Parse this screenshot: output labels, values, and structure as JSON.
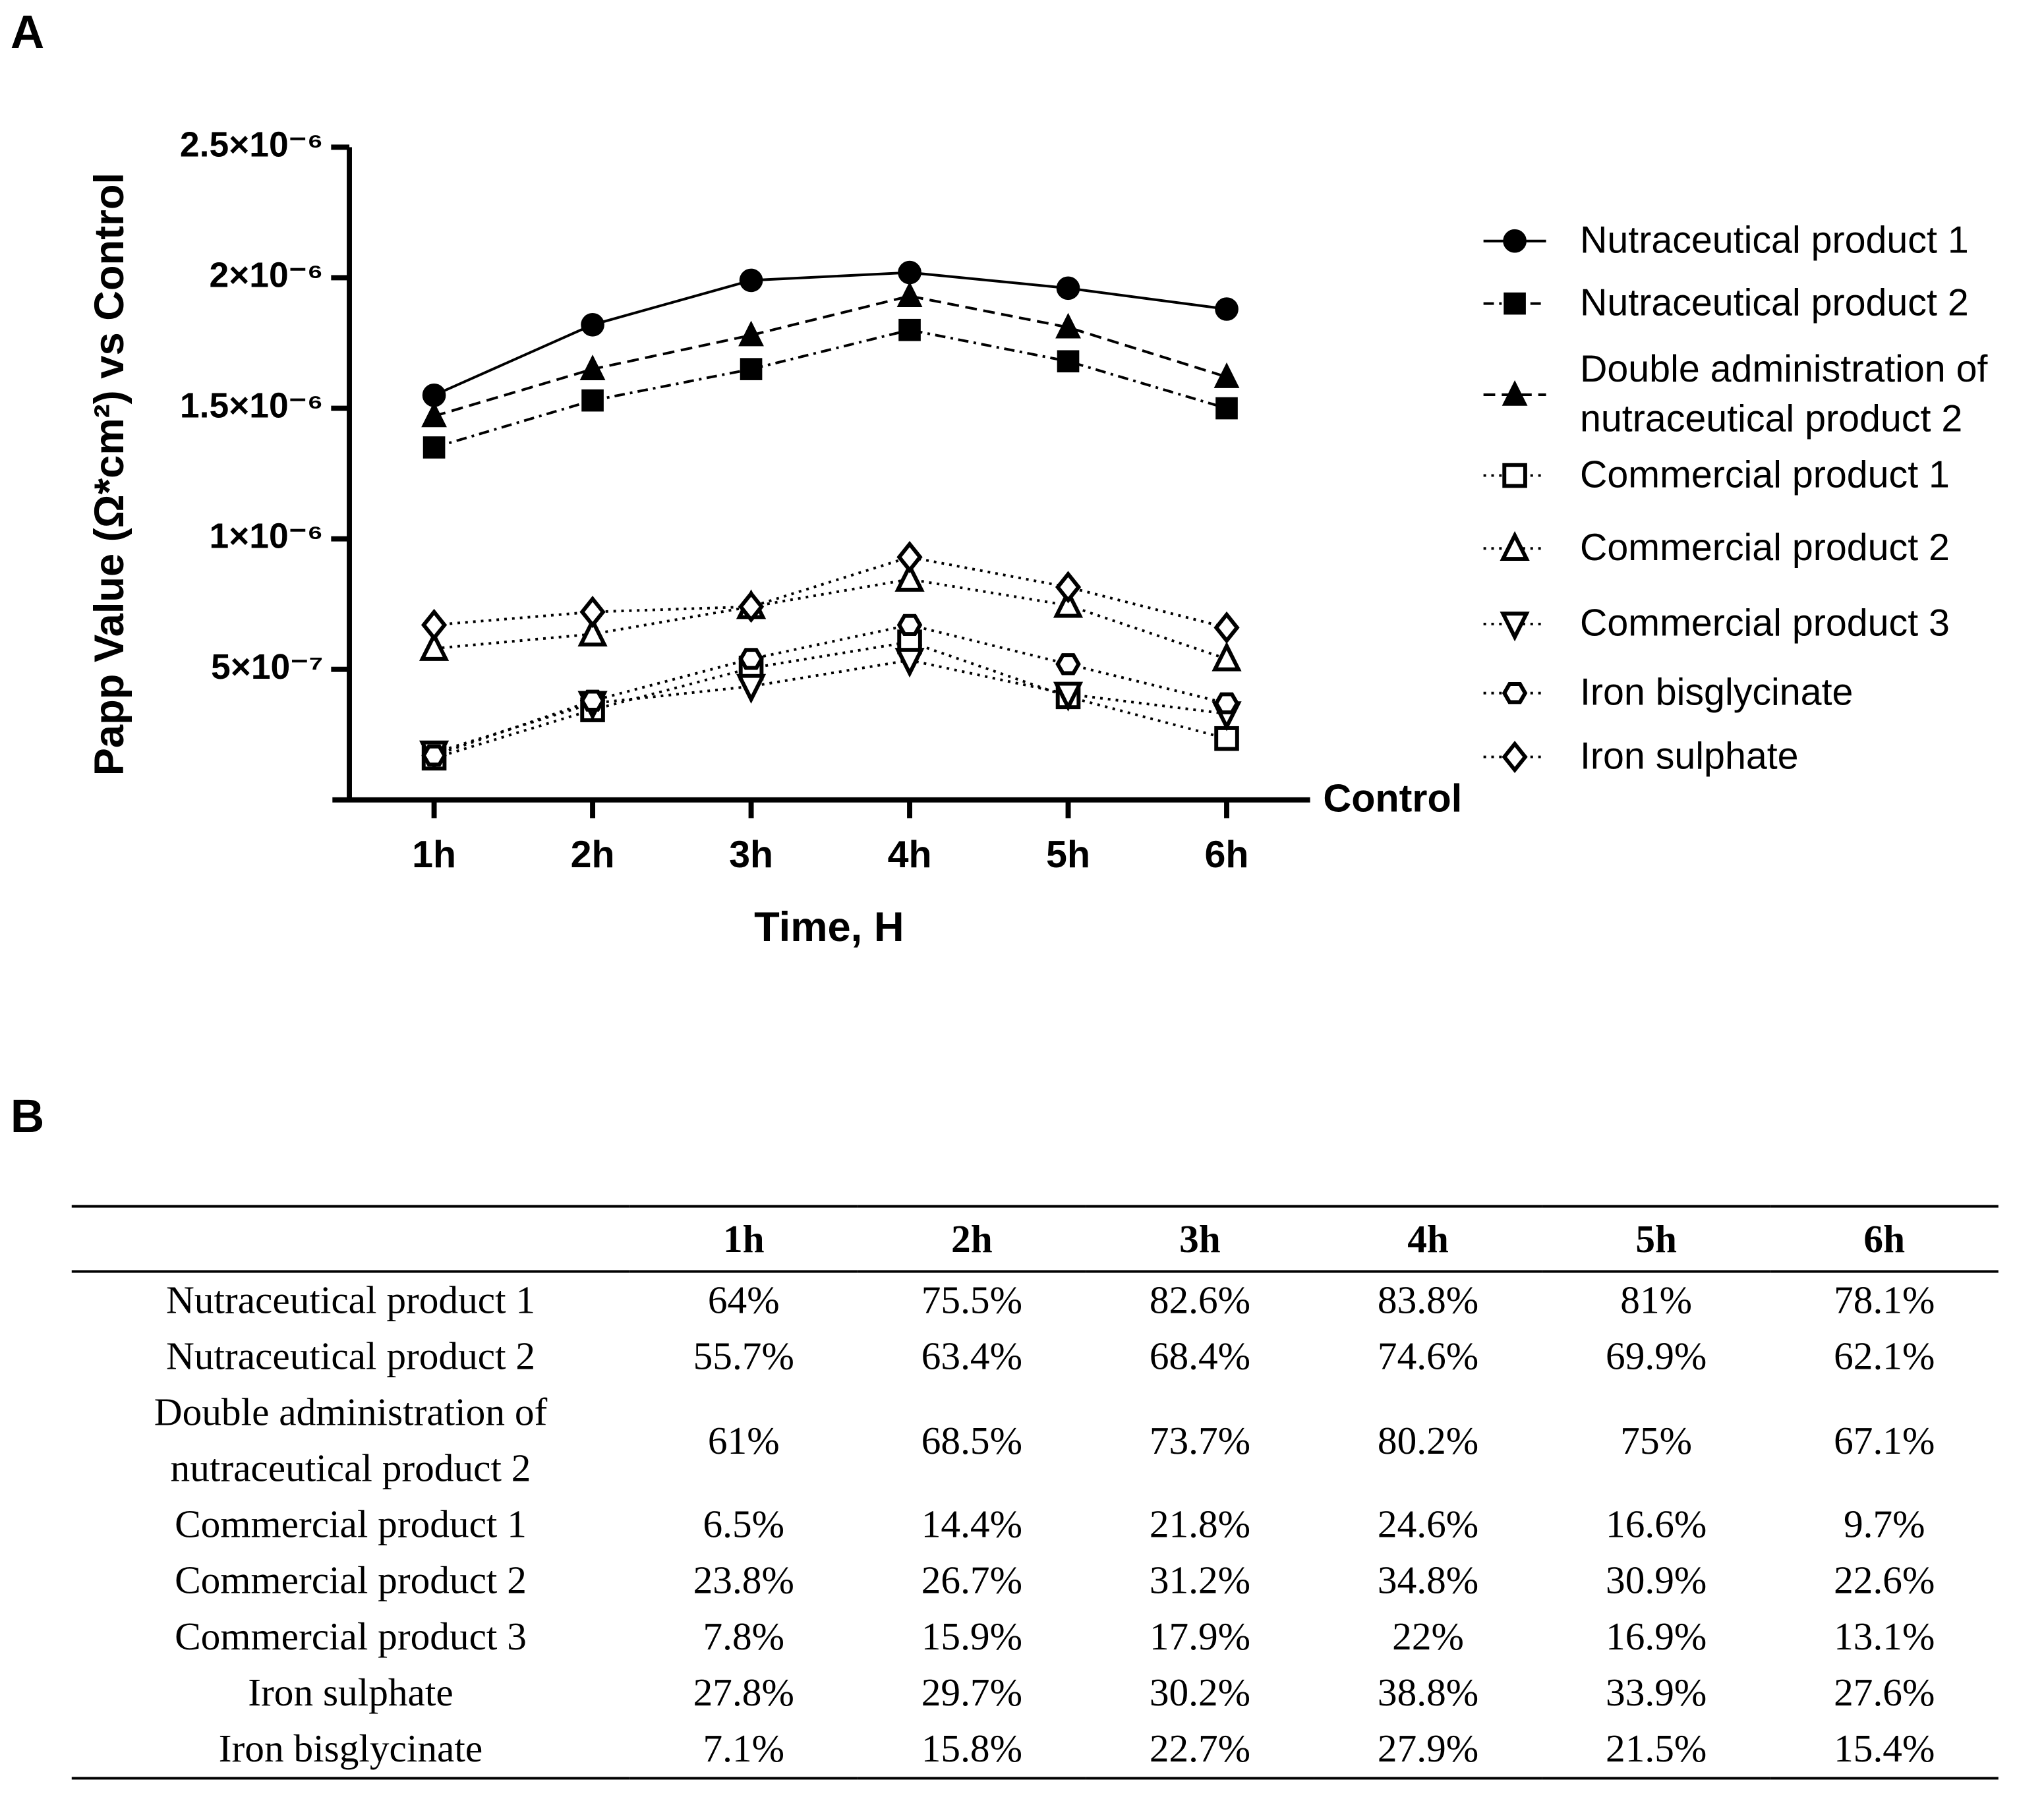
{
  "panel_a_label": "A",
  "chart_data": {
    "type": "line",
    "ylabel": "Papp Value (Ω*cm²) vs Control",
    "xlabel": "Time, H",
    "baseline_label": "Control",
    "categories": [
      "1h",
      "2h",
      "3h",
      "4h",
      "5h",
      "6h"
    ],
    "ylim": [
      0,
      2.5e-06
    ],
    "yticks": [
      {
        "value": 5e-07,
        "label": "5×10⁻⁷"
      },
      {
        "value": 1e-06,
        "label": "1×10⁻⁶"
      },
      {
        "value": 1.5e-06,
        "label": "1.5×10⁻⁶"
      },
      {
        "value": 2e-06,
        "label": "2×10⁻⁶"
      },
      {
        "value": 2.5e-06,
        "label": "2.5×10⁻⁶"
      }
    ],
    "series": [
      {
        "name": "Nutraceutical product 1",
        "color": "#000000",
        "marker": "circle",
        "filled": true,
        "dash": "solid",
        "values": [
          1.55e-06,
          1.82e-06,
          1.99e-06,
          2.02e-06,
          1.96e-06,
          1.88e-06
        ]
      },
      {
        "name": "Nutraceutical product 2",
        "color": "#000000",
        "marker": "square",
        "filled": true,
        "dash": "dashdot",
        "values": [
          1.35e-06,
          1.53e-06,
          1.65e-06,
          1.8e-06,
          1.68e-06,
          1.5e-06
        ]
      },
      {
        "name": "Double administration of nutraceutical product 2",
        "color": "#000000",
        "marker": "triangle",
        "filled": true,
        "dash": "dashed",
        "values": [
          1.47e-06,
          1.65e-06,
          1.78e-06,
          1.93e-06,
          1.81e-06,
          1.62e-06
        ]
      },
      {
        "name": "Commercial product 1",
        "color": "#000000",
        "marker": "square",
        "filled": false,
        "dash": "dotted",
        "values": [
          1.6e-07,
          3.45e-07,
          5.05e-07,
          6.05e-07,
          3.95e-07,
          2.35e-07
        ]
      },
      {
        "name": "Commercial product 2",
        "color": "#000000",
        "marker": "triangle",
        "filled": false,
        "dash": "dotted",
        "values": [
          5.8e-07,
          6.35e-07,
          7.4e-07,
          8.45e-07,
          7.45e-07,
          5.4e-07
        ]
      },
      {
        "name": "Commercial product 3",
        "color": "#000000",
        "marker": "triangle-down",
        "filled": false,
        "dash": "dotted",
        "values": [
          1.8e-07,
          3.7e-07,
          4.35e-07,
          5.35e-07,
          4.05e-07,
          3.3e-07
        ]
      },
      {
        "name": "Iron bisglycinate",
        "color": "#000000",
        "marker": "hexagon",
        "filled": false,
        "dash": "dotted",
        "values": [
          1.7e-07,
          3.8e-07,
          5.4e-07,
          6.7e-07,
          5.2e-07,
          3.7e-07
        ]
      },
      {
        "name": "Iron sulphate",
        "color": "#000000",
        "marker": "diamond",
        "filled": false,
        "dash": "dotted",
        "values": [
          6.7e-07,
          7.2e-07,
          7.4e-07,
          9.3e-07,
          8.15e-07,
          6.6e-07
        ]
      }
    ]
  },
  "panel_b_label": "B",
  "table": {
    "header": [
      "1h",
      "2h",
      "3h",
      "4h",
      "5h",
      "6h"
    ],
    "rows": [
      [
        "Nutraceutical product 1",
        "64%",
        "75.5%",
        "82.6%",
        "83.8%",
        "81%",
        "78.1%"
      ],
      [
        "Nutraceutical product 2",
        "55.7%",
        "63.4%",
        "68.4%",
        "74.6%",
        "69.9%",
        "62.1%"
      ],
      [
        "Double administration of nutraceutical product 2",
        "61%",
        "68.5%",
        "73.7%",
        "80.2%",
        "75%",
        "67.1%"
      ],
      [
        "Commercial product 1",
        "6.5%",
        "14.4%",
        "21.8%",
        "24.6%",
        "16.6%",
        "9.7%"
      ],
      [
        "Commercial product 2",
        "23.8%",
        "26.7%",
        "31.2%",
        "34.8%",
        "30.9%",
        "22.6%"
      ],
      [
        "Commercial product 3",
        "7.8%",
        "15.9%",
        "17.9%",
        "22%",
        "16.9%",
        "13.1%"
      ],
      [
        "Iron sulphate",
        "27.8%",
        "29.7%",
        "30.2%",
        "38.8%",
        "33.9%",
        "27.6%"
      ],
      [
        "Iron bisglycinate",
        "7.1%",
        "15.8%",
        "22.7%",
        "27.9%",
        "21.5%",
        "15.4%"
      ]
    ]
  }
}
